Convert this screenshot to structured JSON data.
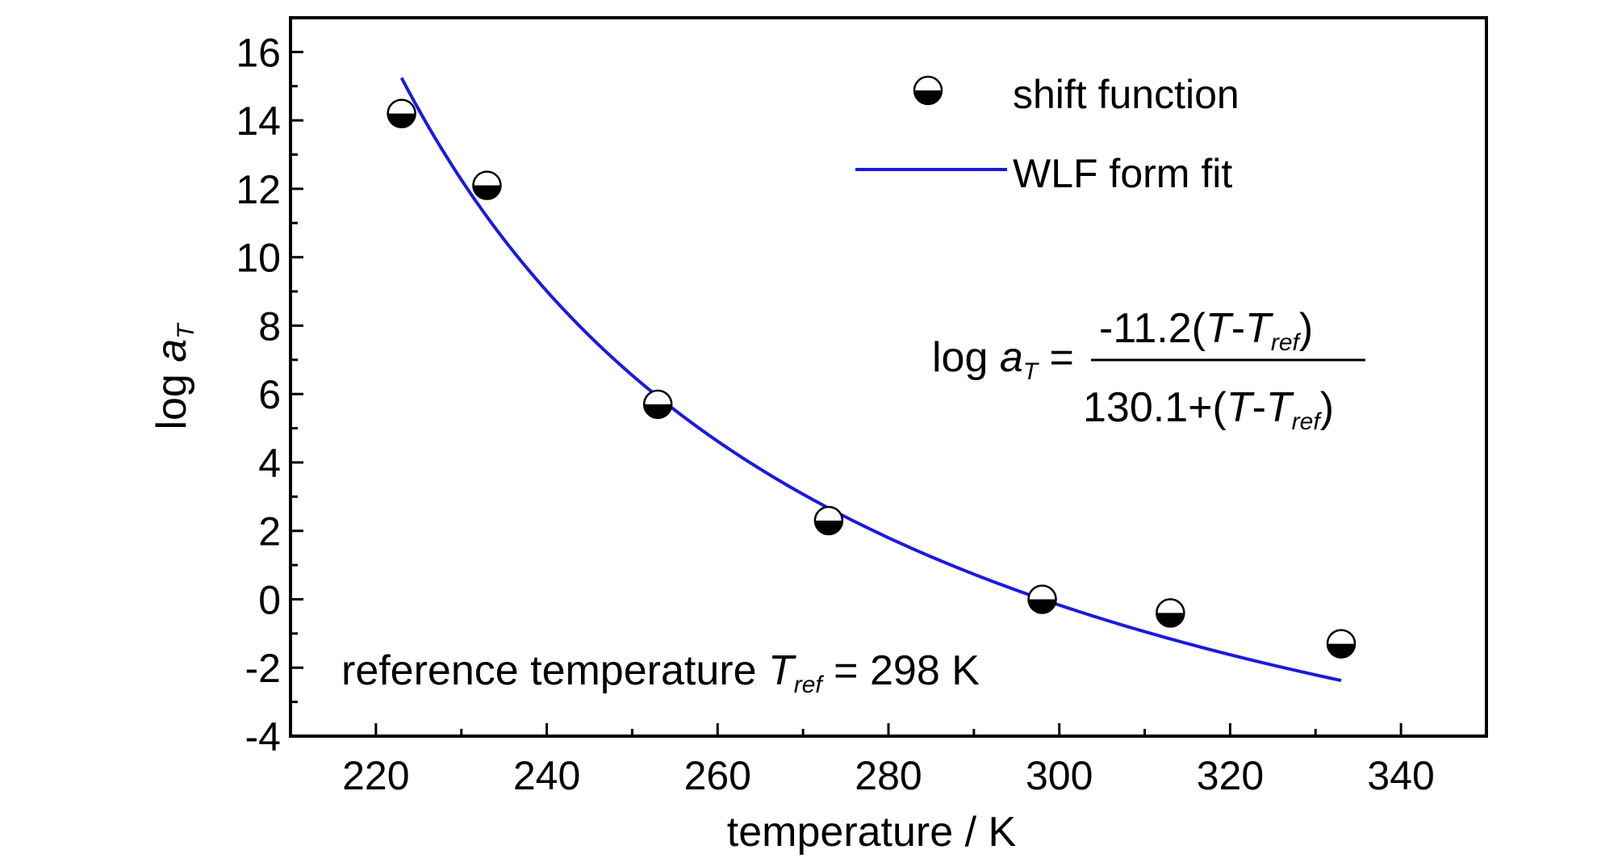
{
  "chart_data": {
    "type": "scatter",
    "xlabel": "temperature / K",
    "ylabel": {
      "main": "log ",
      "var": "a",
      "sub": "T"
    },
    "xlim": [
      210,
      350
    ],
    "ylim": [
      -4,
      17
    ],
    "xticks": [
      220,
      240,
      260,
      280,
      300,
      320,
      340
    ],
    "yticks": [
      -4,
      -2,
      0,
      2,
      4,
      6,
      8,
      10,
      12,
      14,
      16
    ],
    "xtick_labels": [
      "220",
      "240",
      "260",
      "280",
      "300",
      "320",
      "340"
    ],
    "ytick_labels": [
      "-4",
      "-2",
      "0",
      "2",
      "4",
      "6",
      "8",
      "10",
      "12",
      "14",
      "16"
    ],
    "series": [
      {
        "name": "shift function",
        "kind": "points",
        "marker": "half-filled-circle",
        "x": [
          223,
          233,
          253,
          273,
          298,
          313,
          333
        ],
        "y": [
          14.2,
          12.1,
          5.7,
          2.3,
          0.0,
          -0.4,
          -1.3
        ]
      },
      {
        "name": "WLF form fit",
        "kind": "line",
        "color": "#1a1adf",
        "x_range": [
          223,
          333
        ],
        "wlf": {
          "c1": 11.2,
          "c2": 130.1,
          "tref": 298
        }
      }
    ],
    "equation": {
      "lhs_main": "log ",
      "lhs_var": "a",
      "lhs_sub": "T",
      "equals": " =",
      "num_prefix": "-11.2(",
      "den_prefix": "130.1+(",
      "T": "T",
      "dash": "-",
      "Tref_T": "T",
      "Tref_sub": "ref",
      "close": ")"
    },
    "annotation": {
      "prefix": "reference temperature ",
      "var": "T",
      "sub": "ref",
      "suffix": " = 298 K"
    },
    "legend_position": "top-right",
    "grid": false
  }
}
